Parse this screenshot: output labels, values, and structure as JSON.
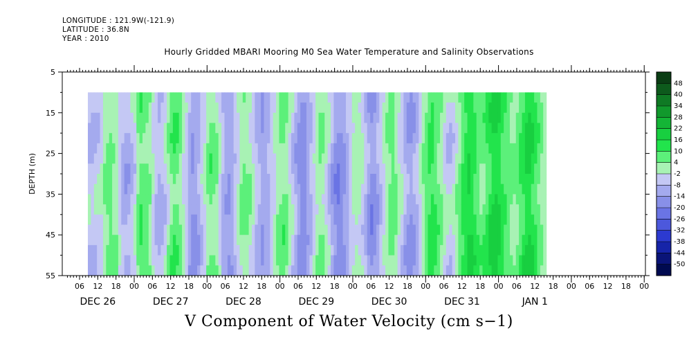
{
  "header": {
    "longitude": "LONGITUDE : 121.9W(-121.9)",
    "latitude": "LATITUDE : 36.8N",
    "year": "YEAR : 2010"
  },
  "chart_data": {
    "type": "heatmap",
    "title": "Hourly Gridded MBARI Mooring M0 Sea Water Temperature and Salinity Observations",
    "xlabel": "V Component of Water Velocity (cm s−1)",
    "ylabel": "DEPTH (m)",
    "y_ticks": [
      5,
      15,
      25,
      35,
      45,
      55
    ],
    "ylim": [
      5,
      55
    ],
    "y_reversed": true,
    "data_depth_range": [
      10,
      55
    ],
    "hour_tick_labels": [
      "06",
      "12",
      "18",
      "00",
      "06",
      "12",
      "18",
      "00",
      "06",
      "12",
      "18",
      "00",
      "06",
      "12",
      "18",
      "00",
      "06",
      "12",
      "18",
      "00",
      "06",
      "12",
      "18",
      "00",
      "06",
      "12",
      "18",
      "00",
      "06",
      "12",
      "18",
      "00"
    ],
    "day_labels": [
      "DEC 26",
      "DEC 27",
      "DEC 28",
      "DEC 29",
      "DEC 30",
      "DEC 31",
      "JAN  1"
    ],
    "colorbar": {
      "labels": [
        "48",
        "40",
        "34",
        "28",
        "22",
        "16",
        "10",
        "4",
        "-2",
        "-8",
        "-14",
        "-20",
        "-26",
        "-32",
        "-38",
        "-44",
        "-50"
      ],
      "colors": [
        "#0a3d14",
        "#0d5a1c",
        "#0f7a24",
        "#11992c",
        "#14b536",
        "#18cf40",
        "#22e44c",
        "#5cf07a",
        "#a8f2b4",
        "#c4c8f4",
        "#a4aaee",
        "#8890e8",
        "#6a74e4",
        "#4c58dc",
        "#2c3ad0",
        "#1624a8",
        "#0a1478",
        "#000a50"
      ]
    },
    "v_series_by_hour": [
      -5,
      -6,
      -5,
      -4,
      -3,
      2,
      4,
      5,
      3,
      2,
      -4,
      -8,
      -10,
      -9,
      -6,
      -3,
      4,
      7,
      6,
      5,
      3,
      -2,
      -6,
      -8,
      -7,
      -4,
      1,
      5,
      7,
      6,
      3,
      -1,
      -5,
      -10,
      -13,
      -12,
      -9,
      -5,
      -2,
      3,
      5,
      4,
      2,
      -3,
      -8,
      -11,
      -12,
      -10,
      -6,
      -2,
      2,
      4,
      3,
      1,
      -2,
      -6,
      -9,
      -11,
      -10,
      -8,
      -5,
      -2,
      2,
      4,
      5,
      3,
      -1,
      -5,
      -9,
      -13,
      -15,
      -14,
      -11,
      -7,
      -3,
      1,
      3,
      2,
      -1,
      -5,
      -10,
      -14,
      -16,
      -15,
      -12,
      -8,
      -4,
      -1,
      1,
      0,
      -3,
      -7,
      -11,
      -14,
      -13,
      -10,
      -6,
      -2,
      2,
      4,
      5,
      3,
      -1,
      -4,
      -8,
      -11,
      -12,
      -10,
      -7,
      -3,
      2,
      6,
      9,
      10,
      8,
      5,
      2,
      -1,
      -4,
      -5,
      -3,
      1,
      5,
      9,
      12,
      14,
      13,
      10,
      7,
      5,
      6,
      9,
      12,
      14,
      15,
      13,
      10,
      8,
      6,
      4,
      3,
      5,
      8,
      11,
      13,
      14,
      12,
      9,
      6,
      3,
      1
    ]
  }
}
